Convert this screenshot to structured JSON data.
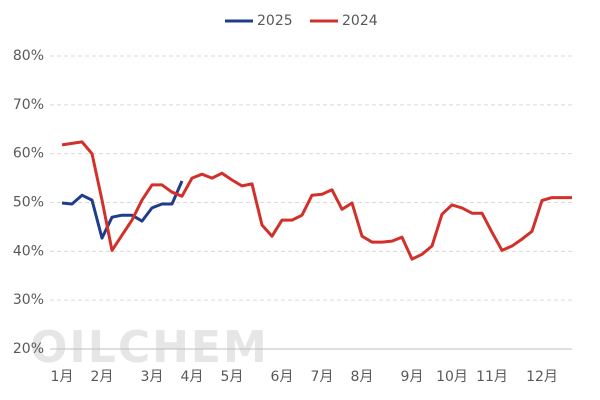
{
  "chart_data": {
    "type": "line",
    "watermark": "OILCHEM",
    "categories": [
      "1月",
      null,
      null,
      null,
      "2月",
      null,
      null,
      null,
      null,
      "3月",
      null,
      null,
      null,
      "4月",
      null,
      null,
      null,
      "5月",
      null,
      null,
      null,
      null,
      "6月",
      null,
      null,
      null,
      "7月",
      null,
      null,
      null,
      "8月",
      null,
      null,
      null,
      null,
      "9月",
      null,
      null,
      null,
      "10月",
      null,
      null,
      null,
      "11月",
      null,
      null,
      null,
      null,
      "12月",
      null,
      null,
      null
    ],
    "series": [
      {
        "name": "2025",
        "color": "#1f3d8c",
        "values": [
          49.9,
          49.7,
          51.5,
          50.5,
          42.7,
          47.0,
          47.4,
          47.4,
          46.2,
          48.9,
          49.7,
          49.7,
          54.4,
          null,
          null,
          null,
          null,
          null,
          null,
          null,
          null,
          null,
          null,
          null,
          null,
          null,
          null,
          null,
          null,
          null,
          null,
          null,
          null,
          null,
          null,
          null,
          null,
          null,
          null,
          null,
          null,
          null,
          null,
          null,
          null,
          null,
          null,
          null,
          null,
          null,
          null,
          null
        ]
      },
      {
        "name": "2024",
        "color": "#d2312b",
        "values": [
          61.8,
          62.1,
          62.4,
          60.0,
          50.5,
          40.2,
          43.3,
          46.4,
          50.5,
          53.6,
          53.6,
          52.1,
          51.3,
          55.0,
          55.8,
          55.0,
          56.0,
          54.6,
          53.4,
          53.8,
          45.4,
          43.1,
          46.4,
          46.4,
          47.4,
          51.5,
          51.7,
          52.6,
          48.6,
          49.9,
          43.1,
          41.9,
          41.9,
          42.1,
          42.9,
          38.4,
          39.4,
          41.1,
          47.6,
          49.5,
          48.9,
          47.8,
          47.8,
          43.9,
          40.2,
          41.1,
          42.5,
          44.1,
          50.4,
          51.0,
          51.0,
          51.0
        ]
      }
    ],
    "ylim": [
      20,
      80
    ],
    "yticks": [
      {
        "value": 20,
        "label": "20%"
      },
      {
        "value": 30,
        "label": "30%"
      },
      {
        "value": 40,
        "label": "40%"
      },
      {
        "value": 50,
        "label": "50%"
      },
      {
        "value": 60,
        "label": "60%"
      },
      {
        "value": 70,
        "label": "70%"
      },
      {
        "value": 80,
        "label": "80%"
      }
    ],
    "grid": true,
    "legend": "top"
  }
}
